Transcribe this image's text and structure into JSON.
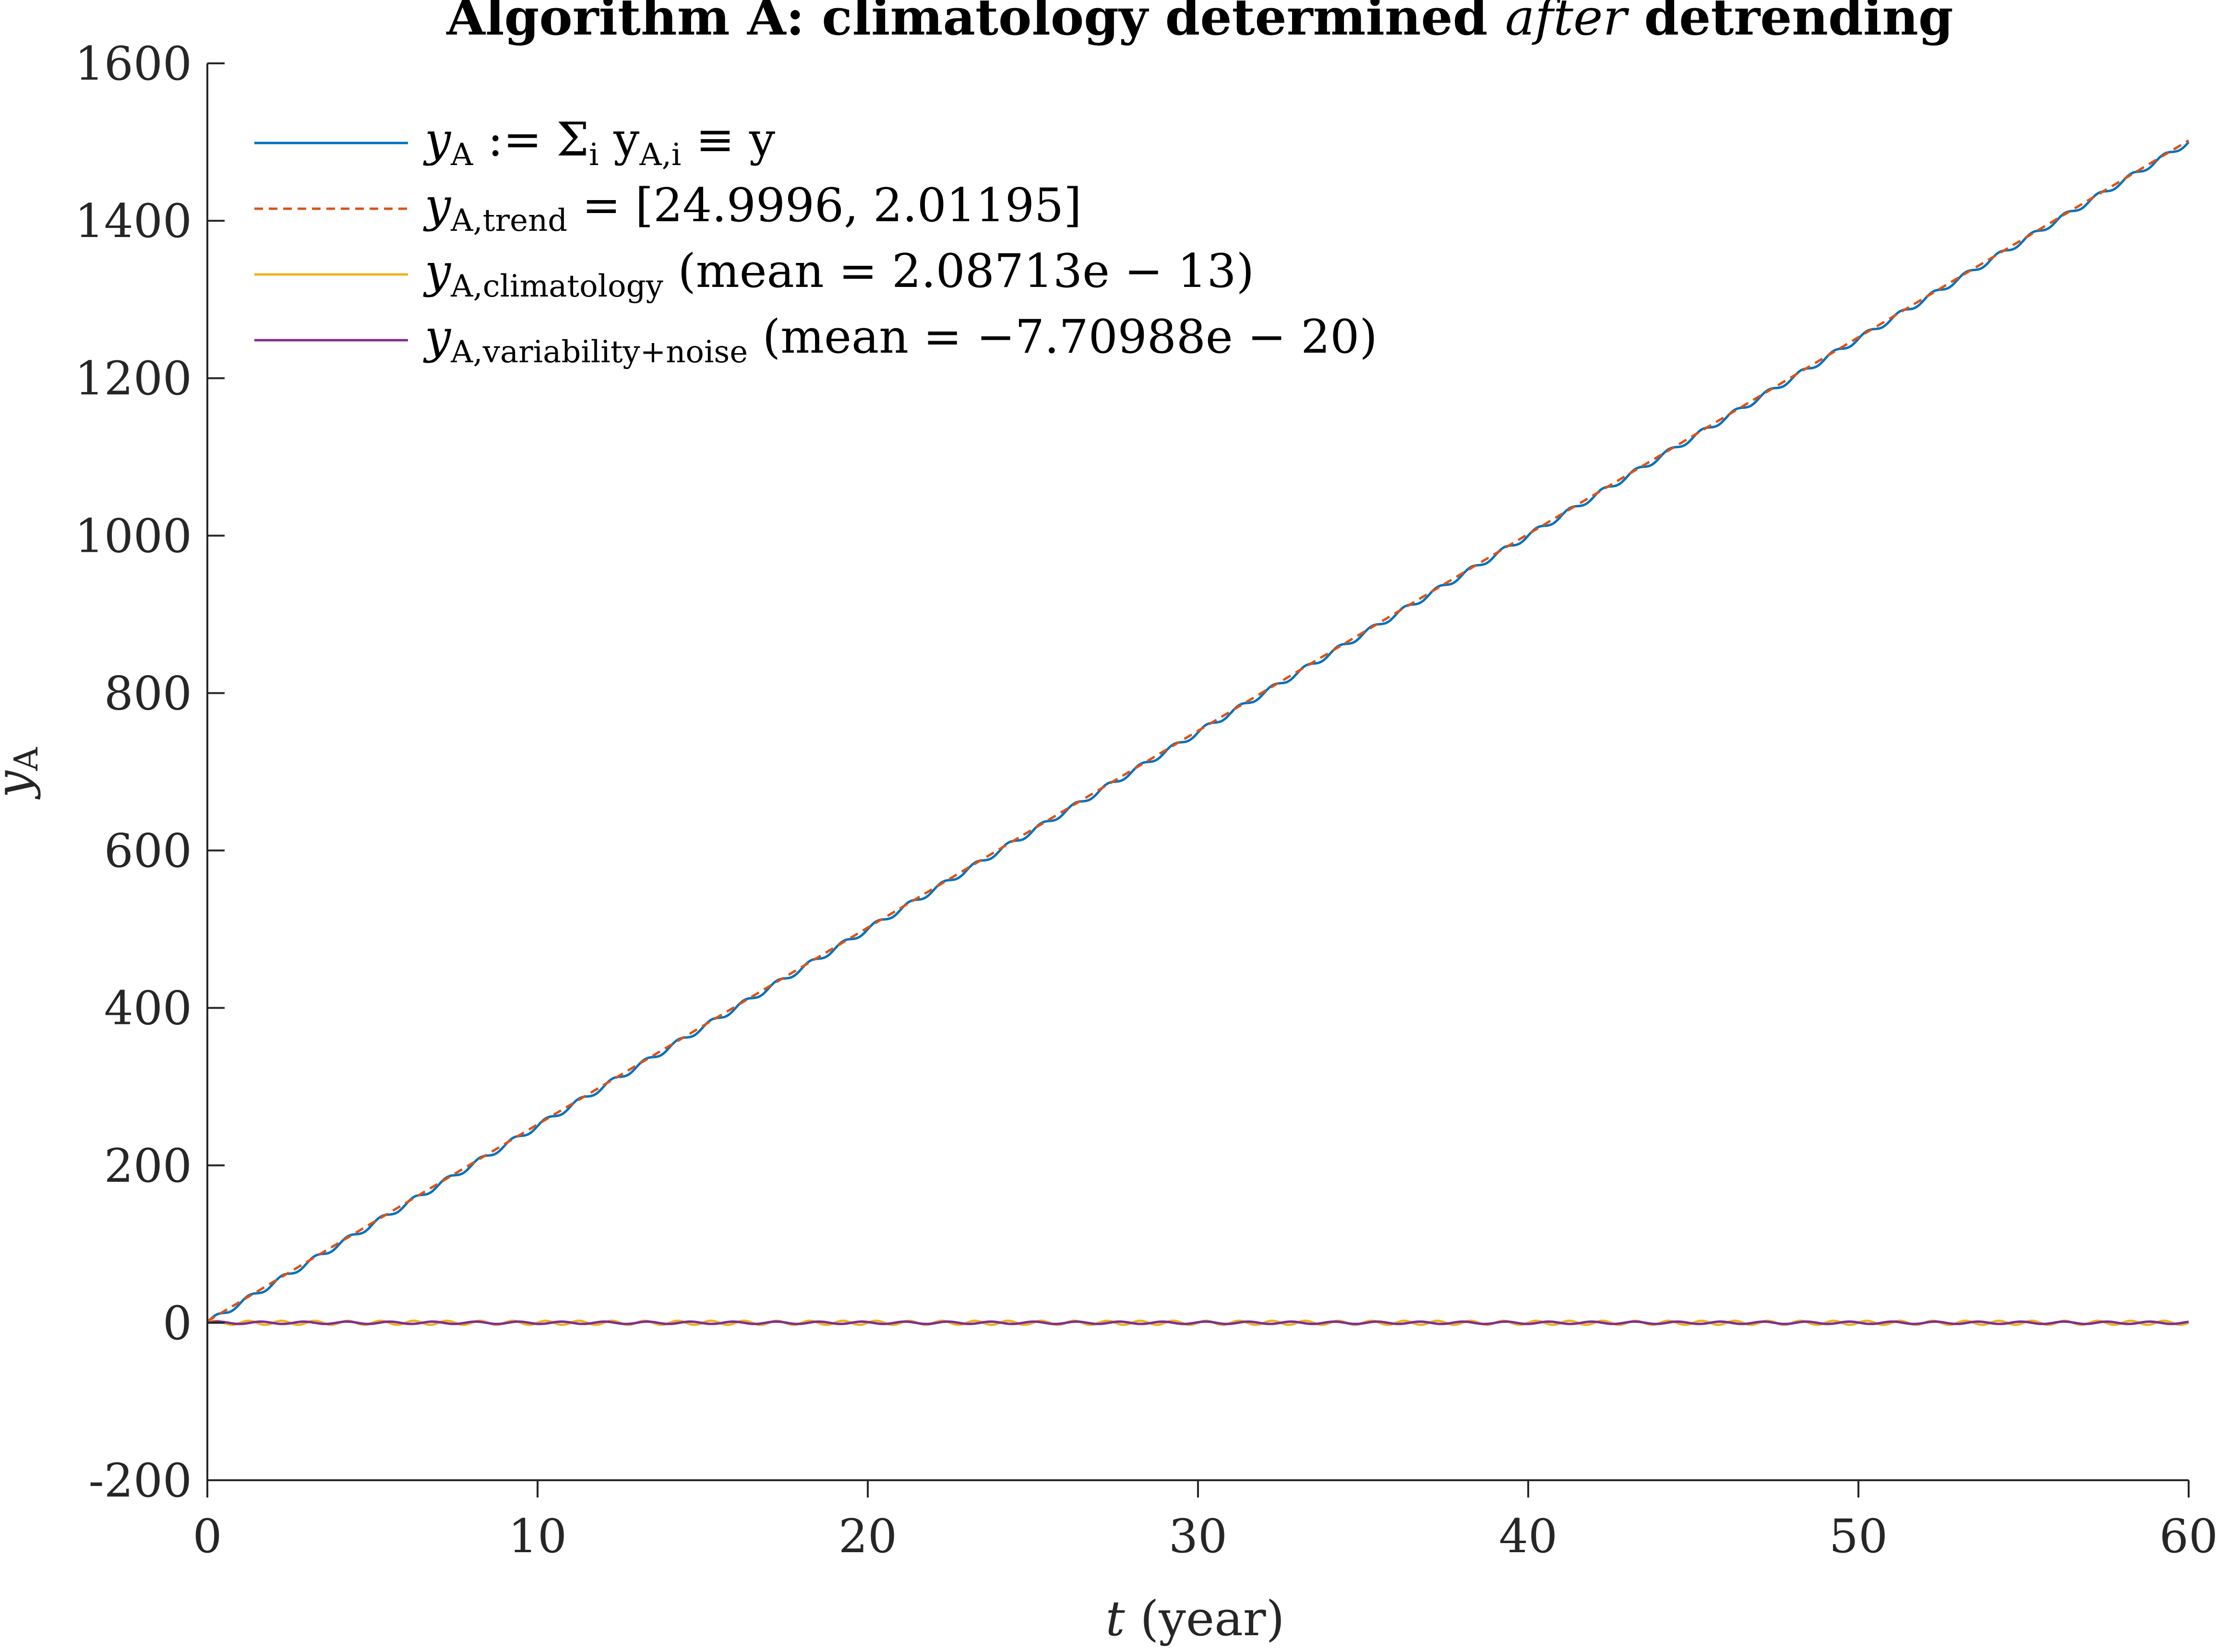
{
  "chart_data": {
    "type": "line",
    "title": "Algorithm A: climatology determined after detrending",
    "title_parts": [
      "Algorithm A: climatology determined ",
      "after",
      " detrending"
    ],
    "xlabel": "t (year)",
    "xlabel_parts": [
      "t",
      " (year)"
    ],
    "ylabel": "y_A",
    "ylabel_parts": [
      "y",
      "A"
    ],
    "xlim": [
      0,
      60
    ],
    "ylim": [
      -200,
      1600
    ],
    "xticks": [
      0,
      10,
      20,
      30,
      40,
      50,
      60
    ],
    "yticks": [
      -200,
      0,
      200,
      400,
      600,
      800,
      1000,
      1200,
      1400,
      1600
    ],
    "grid": false,
    "legend_position": "top-left",
    "series": [
      {
        "name": "y_A := Σ_i y_A,i ≡ y",
        "legend": [
          "y",
          "A",
          " := Σ",
          "i",
          " y",
          "A,i",
          " ≡ y"
        ],
        "color": "#0072BD",
        "style": "solid",
        "model": {
          "intercept": 0,
          "slope": 25,
          "seasonal_amplitude": 3.5,
          "period_years": 1
        },
        "x": [
          0,
          10,
          20,
          30,
          40,
          50,
          60
        ],
        "values": [
          0,
          250,
          500,
          750,
          1000,
          1250,
          1500
        ]
      },
      {
        "name": "y_A,trend = [24.9996, 2.01195]",
        "legend": [
          "y",
          "A,trend",
          " = [24.9996, 2.01195]"
        ],
        "color": "#D95319",
        "style": "dashed",
        "model": {
          "intercept": 2.01195,
          "slope": 24.9996
        },
        "x": [
          0,
          10,
          20,
          30,
          40,
          50,
          60
        ],
        "values": [
          2.01,
          252.01,
          502.0,
          752.0,
          1002.0,
          1251.99,
          1501.99
        ]
      },
      {
        "name": "y_A,climatology (mean = 2.08713e − 13)",
        "legend": [
          "y",
          "A,climatology",
          " (mean = 2.08713e − 13)"
        ],
        "color": "#EDB120",
        "style": "solid",
        "model": {
          "mean": 0,
          "seasonal_amplitude": 2.5,
          "period_years": 1
        },
        "x": [
          0,
          60
        ],
        "values": [
          0,
          0
        ]
      },
      {
        "name": "y_A,variability+noise (mean = −7.70988e − 20)",
        "legend": [
          "y",
          "A,variability+noise",
          " (mean = −7.70988e − 20)"
        ],
        "color": "#7E2F8E",
        "style": "solid",
        "model": {
          "mean": 0,
          "seasonal_amplitude": 1.5,
          "period_years": 1.3
        },
        "x": [
          0,
          60
        ],
        "values": [
          0,
          0
        ]
      }
    ]
  }
}
